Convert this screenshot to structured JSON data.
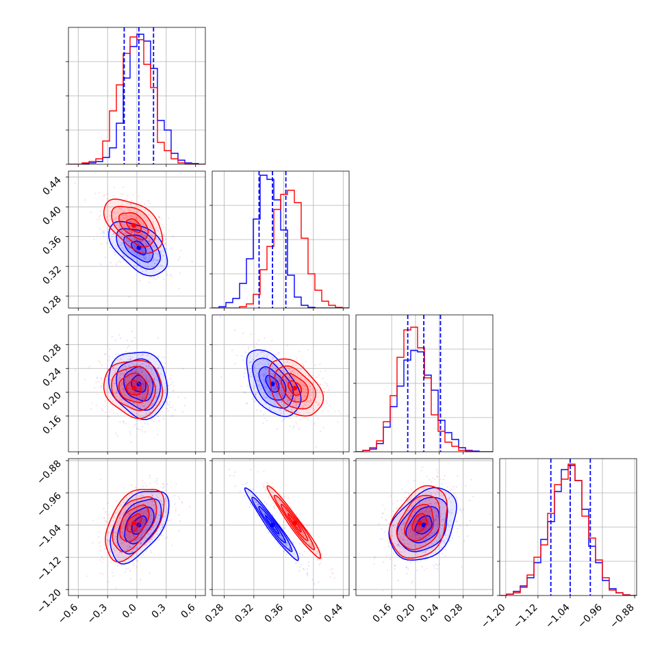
{
  "chart_data": {
    "type": "corner",
    "series": [
      {
        "name": "",
        "color": "#0000ff"
      },
      {
        "name": "",
        "color": "#ff0000"
      }
    ],
    "parameters": [
      {
        "index": 0,
        "range": [
          -0.7,
          0.7
        ],
        "ticks": [
          -0.6,
          -0.3,
          0.0,
          0.3,
          0.6
        ],
        "tick_labels": [
          "−0.6",
          "−0.3",
          "0.0",
          "0.3",
          "0.6"
        ],
        "quantiles": [
          -0.13,
          0.02,
          0.17
        ]
      },
      {
        "index": 1,
        "range": [
          0.264,
          0.448
        ],
        "ticks": [
          0.28,
          0.32,
          0.36,
          0.4,
          0.44
        ],
        "tick_labels": [
          "0.28",
          "0.32",
          "0.36",
          "0.40",
          "0.44"
        ],
        "quantiles": [
          0.327,
          0.345,
          0.363
        ]
      },
      {
        "index": 2,
        "range": [
          0.1,
          0.33
        ],
        "ticks": [
          0.16,
          0.2,
          0.24,
          0.28
        ],
        "tick_labels": [
          "0.16",
          "0.20",
          "0.24",
          "0.28"
        ],
        "quantiles": [
          0.187,
          0.214,
          0.242
        ]
      },
      {
        "index": 3,
        "range": [
          -1.215,
          -0.875
        ],
        "ticks": [
          -1.2,
          -1.12,
          -1.04,
          -0.96,
          -0.88
        ],
        "tick_labels": [
          "−1.20",
          "−1.12",
          "−1.04",
          "−0.96",
          "−0.88"
        ],
        "quantiles": [
          -1.088,
          -1.04,
          -0.99
        ]
      }
    ],
    "histograms": [
      {
        "param": 0,
        "bin_edges": [
          -0.7,
          -0.63,
          -0.56,
          -0.49,
          -0.42,
          -0.35,
          -0.28,
          -0.21,
          -0.14,
          -0.07,
          0.0,
          0.07,
          0.14,
          0.21,
          0.28,
          0.35,
          0.42,
          0.49,
          0.56,
          0.63,
          0.7
        ],
        "ylim": [
          0,
          1.0
        ],
        "blue": [
          0,
          0,
          0.005,
          0.01,
          0.02,
          0.05,
          0.12,
          0.3,
          0.63,
          0.86,
          0.95,
          0.9,
          0.7,
          0.32,
          0.25,
          0.08,
          0.03,
          0.01,
          0.005,
          0
        ],
        "red": [
          0,
          0,
          0.01,
          0.02,
          0.04,
          0.17,
          0.39,
          0.58,
          0.81,
          0.93,
          0.91,
          0.73,
          0.56,
          0.16,
          0.1,
          0.04,
          0.01,
          0.005,
          0,
          0
        ]
      },
      {
        "param": 1,
        "bin_edges": [
          0.264,
          0.2732,
          0.2824,
          0.2916,
          0.3008,
          0.31,
          0.3192,
          0.3284,
          0.3376,
          0.3468,
          0.356,
          0.3652,
          0.3744,
          0.3836,
          0.3928,
          0.402,
          0.4112,
          0.4204,
          0.4296,
          0.4388,
          0.448
        ],
        "ylim": [
          0,
          1.0
        ],
        "blue": [
          0,
          0.01,
          0.04,
          0.07,
          0.18,
          0.36,
          0.65,
          0.97,
          0.94,
          0.79,
          0.57,
          0.24,
          0.08,
          0.02,
          0.005,
          0,
          0,
          0,
          0,
          0
        ],
        "red": [
          0,
          0,
          0,
          0,
          0.01,
          0.03,
          0.1,
          0.28,
          0.45,
          0.72,
          0.83,
          0.86,
          0.77,
          0.51,
          0.25,
          0.13,
          0.05,
          0.02,
          0.005,
          0
        ]
      },
      {
        "param": 2,
        "bin_edges": [
          0.1,
          0.1115,
          0.123,
          0.1345,
          0.146,
          0.1575,
          0.169,
          0.1805,
          0.192,
          0.2035,
          0.215,
          0.2265,
          0.238,
          0.2495,
          0.261,
          0.2725,
          0.284,
          0.2955,
          0.307,
          0.3185,
          0.33
        ],
        "ylim": [
          0,
          1.0
        ],
        "blue": [
          0,
          0.01,
          0.02,
          0.06,
          0.18,
          0.33,
          0.48,
          0.67,
          0.74,
          0.73,
          0.56,
          0.45,
          0.23,
          0.14,
          0.09,
          0.03,
          0.01,
          0.005,
          0,
          0
        ],
        "red": [
          0,
          0.01,
          0.03,
          0.08,
          0.22,
          0.41,
          0.69,
          0.89,
          0.91,
          0.76,
          0.54,
          0.27,
          0.15,
          0.07,
          0.04,
          0.01,
          0.005,
          0,
          0,
          0
        ]
      },
      {
        "param": 3,
        "bin_edges": [
          -1.215,
          -1.198,
          -1.181,
          -1.164,
          -1.147,
          -1.13,
          -1.113,
          -1.096,
          -1.079,
          -1.062,
          -1.045,
          -1.028,
          -1.011,
          -0.994,
          -0.977,
          -0.96,
          -0.943,
          -0.926,
          -0.909,
          -0.892,
          -0.875
        ],
        "ylim": [
          0,
          1.0
        ],
        "blue": [
          0,
          0.01,
          0.03,
          0.07,
          0.13,
          0.24,
          0.41,
          0.54,
          0.76,
          0.92,
          0.95,
          0.84,
          0.63,
          0.36,
          0.24,
          0.11,
          0.05,
          0.02,
          0.005,
          0
        ],
        "red": [
          0,
          0.01,
          0.02,
          0.06,
          0.15,
          0.28,
          0.37,
          0.6,
          0.81,
          0.85,
          0.96,
          0.84,
          0.58,
          0.42,
          0.26,
          0.13,
          0.04,
          0.02,
          0.005,
          0
        ]
      }
    ],
    "joint": [
      {
        "x_param": 0,
        "y_param": 1,
        "blue": {
          "center": [
            0.02,
            0.345
          ],
          "sigma": [
            0.15,
            0.018
          ],
          "corr": -0.5
        },
        "red": {
          "center": [
            -0.03,
            0.375
          ],
          "sigma": [
            0.15,
            0.018
          ],
          "corr": -0.5
        }
      },
      {
        "x_param": 0,
        "y_param": 2,
        "blue": {
          "center": [
            0.02,
            0.214
          ],
          "sigma": [
            0.15,
            0.028
          ],
          "corr": -0.15
        },
        "red": {
          "center": [
            -0.03,
            0.207
          ],
          "sigma": [
            0.15,
            0.024
          ],
          "corr": -0.1
        }
      },
      {
        "x_param": 1,
        "y_param": 2,
        "blue": {
          "center": [
            0.345,
            0.214
          ],
          "sigma": [
            0.018,
            0.028
          ],
          "corr": -0.5
        },
        "red": {
          "center": [
            0.375,
            0.207
          ],
          "sigma": [
            0.018,
            0.024
          ],
          "corr": -0.4
        }
      },
      {
        "x_param": 0,
        "y_param": 3,
        "blue": {
          "center": [
            0.02,
            -1.04
          ],
          "sigma": [
            0.15,
            0.045
          ],
          "corr": 0.5
        },
        "red": {
          "center": [
            -0.03,
            -1.035
          ],
          "sigma": [
            0.15,
            0.045
          ],
          "corr": 0.5
        }
      },
      {
        "x_param": 1,
        "y_param": 3,
        "blue": {
          "center": [
            0.345,
            -1.04
          ],
          "sigma": [
            0.018,
            0.045
          ],
          "corr": -0.97
        },
        "red": {
          "center": [
            0.375,
            -1.035
          ],
          "sigma": [
            0.018,
            0.045
          ],
          "corr": -0.97
        }
      },
      {
        "x_param": 2,
        "y_param": 3,
        "blue": {
          "center": [
            0.214,
            -1.04
          ],
          "sigma": [
            0.028,
            0.045
          ],
          "corr": 0.35
        },
        "red": {
          "center": [
            0.207,
            -1.035
          ],
          "sigma": [
            0.024,
            0.045
          ],
          "corr": 0.3
        }
      }
    ],
    "contour_levels_sigma": [
      0.5,
      1.0,
      1.5,
      2.0
    ],
    "grid": true,
    "legend": "none",
    "title": "",
    "xlabel": "",
    "ylabel": ""
  }
}
